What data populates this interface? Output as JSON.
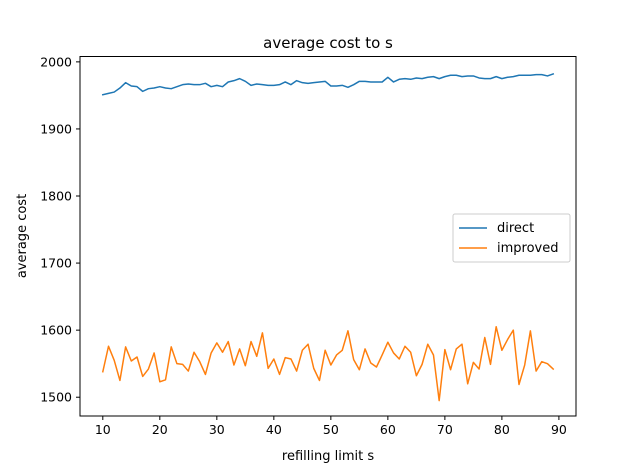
{
  "chart_data": {
    "type": "line",
    "title": "average cost to s",
    "xlabel": "refilling limit s",
    "ylabel": "average cost",
    "xlim": [
      6,
      93
    ],
    "ylim": [
      1472,
      2008
    ],
    "xticks": [
      10,
      20,
      30,
      40,
      50,
      60,
      70,
      80,
      90
    ],
    "yticks": [
      1500,
      1600,
      1700,
      1800,
      1900,
      2000
    ],
    "legend_position": "center-right",
    "grid": false,
    "x": [
      10,
      11,
      12,
      13,
      14,
      15,
      16,
      17,
      18,
      19,
      20,
      21,
      22,
      23,
      24,
      25,
      26,
      27,
      28,
      29,
      30,
      31,
      32,
      33,
      34,
      35,
      36,
      37,
      38,
      39,
      40,
      41,
      42,
      43,
      44,
      45,
      46,
      47,
      48,
      49,
      50,
      51,
      52,
      53,
      54,
      55,
      56,
      57,
      58,
      59,
      60,
      61,
      62,
      63,
      64,
      65,
      66,
      67,
      68,
      69,
      70,
      71,
      72,
      73,
      74,
      75,
      76,
      77,
      78,
      79,
      80,
      81,
      82,
      83,
      84,
      85,
      86,
      87,
      88,
      89
    ],
    "series": [
      {
        "name": "direct",
        "color": "#1f77b4",
        "values": [
          1951,
          1953,
          1955,
          1961,
          1969,
          1964,
          1963,
          1956,
          1960,
          1961,
          1963,
          1961,
          1960,
          1963,
          1966,
          1967,
          1966,
          1966,
          1968,
          1963,
          1965,
          1963,
          1970,
          1972,
          1975,
          1971,
          1965,
          1967,
          1966,
          1965,
          1965,
          1966,
          1970,
          1966,
          1972,
          1969,
          1968,
          1969,
          1970,
          1971,
          1964,
          1964,
          1965,
          1962,
          1966,
          1971,
          1971,
          1970,
          1970,
          1970,
          1977,
          1970,
          1974,
          1975,
          1974,
          1976,
          1975,
          1977,
          1978,
          1975,
          1978,
          1980,
          1980,
          1978,
          1979,
          1979,
          1976,
          1975,
          1975,
          1978,
          1975,
          1977,
          1978,
          1980,
          1980,
          1980,
          1981,
          1981,
          1979,
          1982
        ]
      },
      {
        "name": "improved",
        "color": "#ff7f0e",
        "values": [
          1538,
          1576,
          1555,
          1525,
          1575,
          1554,
          1560,
          1531,
          1542,
          1566,
          1523,
          1526,
          1575,
          1550,
          1549,
          1539,
          1567,
          1553,
          1534,
          1566,
          1581,
          1567,
          1583,
          1548,
          1572,
          1547,
          1583,
          1561,
          1596,
          1543,
          1557,
          1534,
          1559,
          1557,
          1539,
          1570,
          1579,
          1543,
          1525,
          1570,
          1548,
          1563,
          1570,
          1599,
          1556,
          1541,
          1572,
          1551,
          1545,
          1563,
          1582,
          1566,
          1557,
          1576,
          1567,
          1532,
          1549,
          1579,
          1563,
          1495,
          1571,
          1541,
          1572,
          1579,
          1520,
          1552,
          1542,
          1589,
          1549,
          1605,
          1570,
          1586,
          1600,
          1519,
          1548,
          1599,
          1539,
          1553,
          1550,
          1542
        ]
      }
    ]
  }
}
